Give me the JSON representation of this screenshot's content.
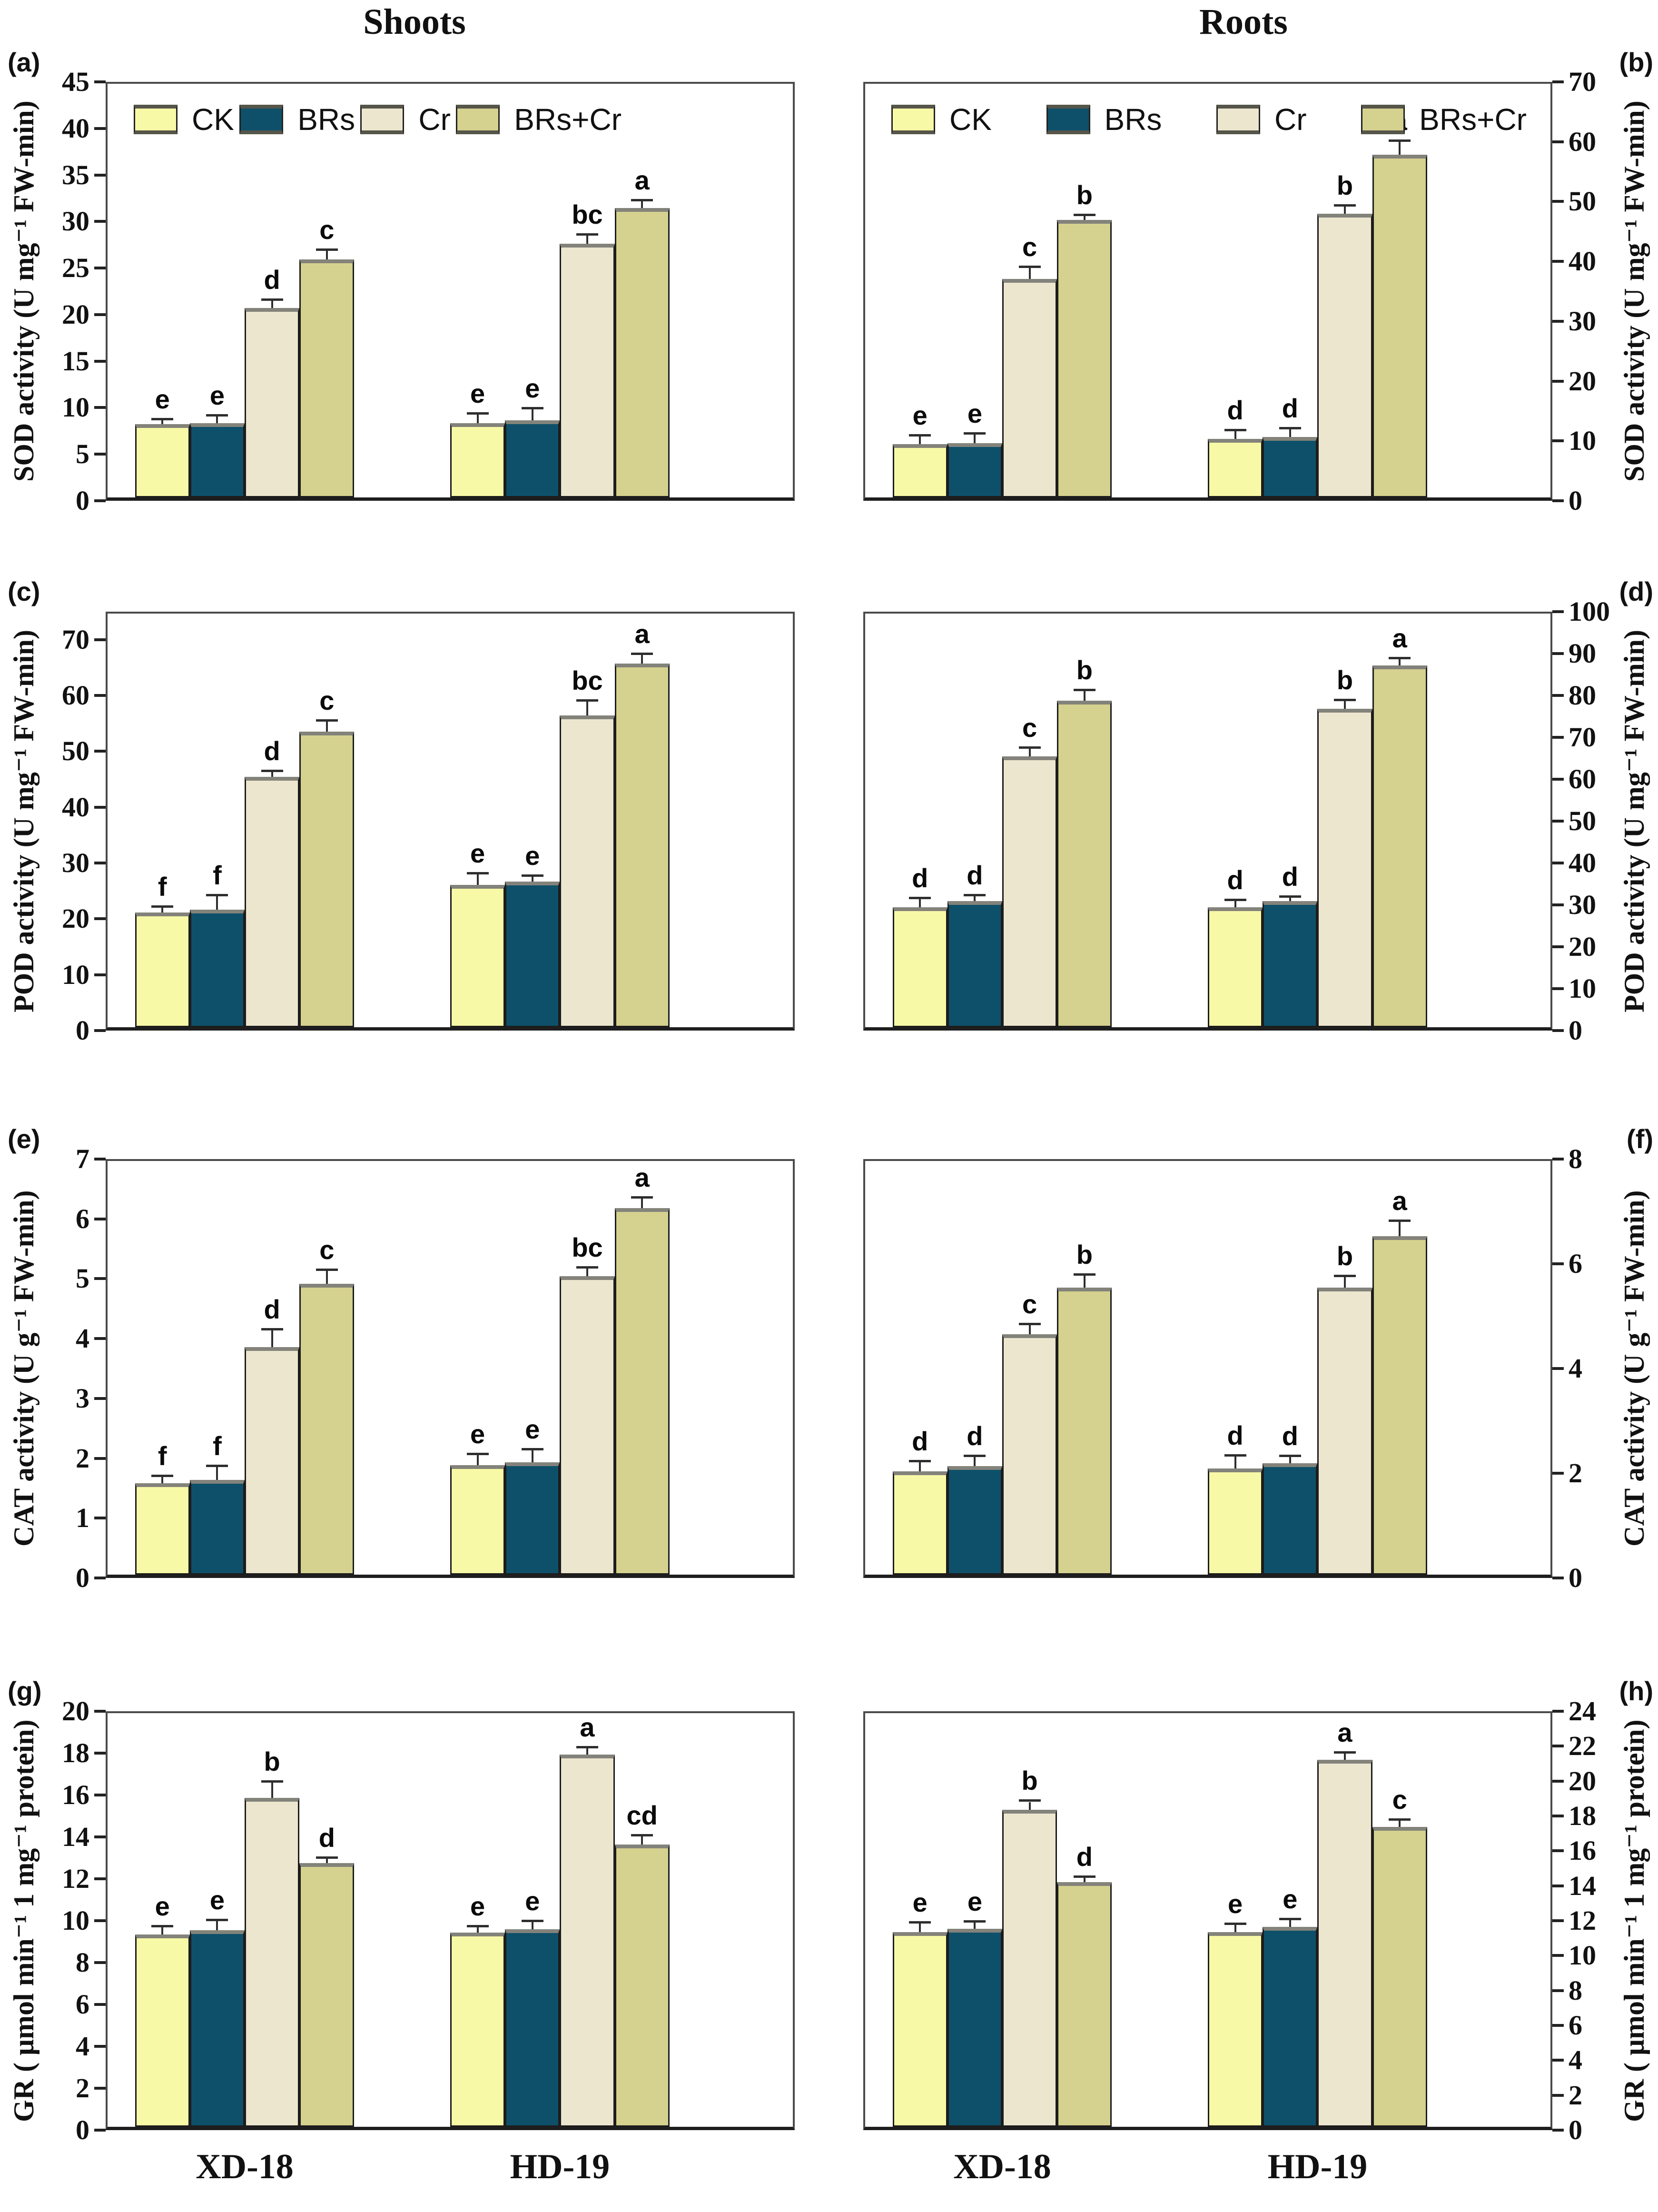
{
  "figure": {
    "column_headers": [
      "Shoots",
      "Roots"
    ],
    "treatments": [
      "CK",
      "BRs",
      "Cr",
      "BRs+Cr"
    ],
    "colors": {
      "CK": "#f8f9a6",
      "BRs": "#0e506a",
      "Cr": "#ece6cf",
      "BRs+Cr": "#d5d18f",
      "bar_border": "#1c1c1c",
      "axis": "#4a4a4a"
    },
    "rows": [
      {
        "plot_top": 80,
        "x_labels": false
      },
      {
        "plot_top": 105,
        "x_labels": false
      },
      {
        "plot_top": 105,
        "x_labels": false
      },
      {
        "plot_top": 135,
        "x_labels": true
      }
    ]
  },
  "chart_data": [
    {
      "panel_letter": "(a)",
      "column": "Shoots",
      "type": "bar",
      "ylabel": "SOD activity (U mg⁻¹ FW-min)",
      "ylim": [
        0,
        45
      ],
      "ytick_step": 5,
      "ytick_max": 45,
      "yaxis_side": "left",
      "legend": true,
      "legend_right": 360,
      "grid": false,
      "categories": [
        "XD-18",
        "HD-19"
      ],
      "series": [
        {
          "name": "CK",
          "values": [
            8.0,
            8.1
          ],
          "errors": [
            0.4,
            0.9
          ],
          "letters": [
            "e",
            "e"
          ]
        },
        {
          "name": "BRs",
          "values": [
            8.1,
            8.4
          ],
          "errors": [
            0.7,
            1.2
          ],
          "letters": [
            "e",
            "e"
          ]
        },
        {
          "name": "Cr",
          "values": [
            20.6,
            27.6
          ],
          "errors": [
            0.8,
            0.9
          ],
          "letters": [
            "d",
            "bc"
          ]
        },
        {
          "name": "BRs+Cr",
          "values": [
            25.9,
            31.5
          ],
          "errors": [
            0.9,
            0.7
          ],
          "letters": [
            "c",
            "a"
          ]
        }
      ]
    },
    {
      "panel_letter": "(b)",
      "column": "Roots",
      "type": "bar",
      "ylabel": "SOD activity (U mg⁻¹ FW-min)",
      "ylim": [
        0,
        70
      ],
      "ytick_step": 10,
      "ytick_max": 70,
      "yaxis_side": "right",
      "legend": true,
      "legend_right": 50,
      "grid": false,
      "categories": [
        "XD-18",
        "HD-19"
      ],
      "series": [
        {
          "name": "CK",
          "values": [
            9.0,
            9.9
          ],
          "errors": [
            1.3,
            1.3
          ],
          "letters": [
            "e",
            "d"
          ]
        },
        {
          "name": "BRs",
          "values": [
            9.2,
            10.2
          ],
          "errors": [
            1.4,
            1.3
          ],
          "letters": [
            "e",
            "d"
          ]
        },
        {
          "name": "Cr",
          "values": [
            37.0,
            48.0
          ],
          "errors": [
            1.8,
            1.2
          ],
          "letters": [
            "c",
            "b"
          ]
        },
        {
          "name": "BRs+Cr",
          "values": [
            47.0,
            58.0
          ],
          "errors": [
            0.6,
            2.2
          ],
          "letters": [
            "b",
            "a"
          ]
        }
      ]
    },
    {
      "panel_letter": "(c)",
      "column": "Shoots",
      "type": "bar",
      "ylabel": "POD activity (U mg⁻¹ FW-min)",
      "ylim": [
        0,
        75
      ],
      "ytick_step": 10,
      "ytick_max": 70,
      "yaxis_side": "left",
      "legend": false,
      "grid": false,
      "categories": [
        "XD-18",
        "HD-19"
      ],
      "series": [
        {
          "name": "CK",
          "values": [
            20.8,
            25.8
          ],
          "errors": [
            0.9,
            1.9
          ],
          "letters": [
            "f",
            "e"
          ]
        },
        {
          "name": "BRs",
          "values": [
            21.3,
            26.4
          ],
          "errors": [
            2.4,
            0.9
          ],
          "letters": [
            "f",
            "e"
          ]
        },
        {
          "name": "Cr",
          "values": [
            45.4,
            56.5
          ],
          "errors": [
            0.9,
            2.5
          ],
          "letters": [
            "d",
            "bc"
          ]
        },
        {
          "name": "BRs+Cr",
          "values": [
            53.6,
            65.9
          ],
          "errors": [
            1.8,
            1.6
          ],
          "letters": [
            "c",
            "a"
          ]
        }
      ]
    },
    {
      "panel_letter": "(d)",
      "column": "Roots",
      "type": "bar",
      "ylabel": "POD activity (U mg⁻¹ FW-min)",
      "ylim": [
        0,
        100
      ],
      "ytick_step": 10,
      "ytick_max": 100,
      "yaxis_side": "right",
      "legend": false,
      "grid": false,
      "categories": [
        "XD-18",
        "HD-19"
      ],
      "series": [
        {
          "name": "CK",
          "values": [
            29.0,
            29.0
          ],
          "errors": [
            2.0,
            1.5
          ],
          "letters": [
            "d",
            "d"
          ]
        },
        {
          "name": "BRs",
          "values": [
            30.5,
            30.5
          ],
          "errors": [
            1.2,
            0.8
          ],
          "letters": [
            "d",
            "d"
          ]
        },
        {
          "name": "Cr",
          "values": [
            65.5,
            77.0
          ],
          "errors": [
            1.8,
            1.8
          ],
          "letters": [
            "c",
            "b"
          ]
        },
        {
          "name": "BRs+Cr",
          "values": [
            79.0,
            87.5
          ],
          "errors": [
            2.2,
            1.4
          ],
          "letters": [
            "b",
            "a"
          ]
        }
      ]
    },
    {
      "panel_letter": "(e)",
      "column": "Shoots",
      "type": "bar",
      "ylabel": "CAT activity (U g⁻¹ FW-min)",
      "ylim": [
        0,
        7
      ],
      "ytick_step": 1,
      "ytick_max": 7,
      "yaxis_side": "left",
      "legend": false,
      "grid": false,
      "categories": [
        "XD-18",
        "HD-19"
      ],
      "series": [
        {
          "name": "CK",
          "values": [
            1.55,
            1.85
          ],
          "errors": [
            0.1,
            0.17
          ],
          "letters": [
            "f",
            "e"
          ]
        },
        {
          "name": "BRs",
          "values": [
            1.6,
            1.9
          ],
          "errors": [
            0.22,
            0.2
          ],
          "letters": [
            "f",
            "e"
          ]
        },
        {
          "name": "Cr",
          "values": [
            3.85,
            5.05
          ],
          "errors": [
            0.28,
            0.13
          ],
          "letters": [
            "d",
            "bc"
          ]
        },
        {
          "name": "BRs+Cr",
          "values": [
            4.92,
            6.2
          ],
          "errors": [
            0.22,
            0.16
          ],
          "letters": [
            "c",
            "a"
          ]
        }
      ]
    },
    {
      "panel_letter": "(f)",
      "column": "Roots",
      "type": "bar",
      "ylabel": "CAT activity (U g⁻¹ FW-min)",
      "ylim": [
        0,
        8
      ],
      "ytick_step": 2,
      "ytick_max": 8,
      "yaxis_side": "right",
      "legend": false,
      "grid": false,
      "categories": [
        "XD-18",
        "HD-19"
      ],
      "series": [
        {
          "name": "CK",
          "values": [
            2.0,
            2.05
          ],
          "errors": [
            0.17,
            0.23
          ],
          "letters": [
            "d",
            "d"
          ]
        },
        {
          "name": "BRs",
          "values": [
            2.1,
            2.15
          ],
          "errors": [
            0.17,
            0.12
          ],
          "letters": [
            "d",
            "d"
          ]
        },
        {
          "name": "Cr",
          "values": [
            4.65,
            5.55
          ],
          "errors": [
            0.17,
            0.2
          ],
          "letters": [
            "c",
            "b"
          ]
        },
        {
          "name": "BRs+Cr",
          "values": [
            5.55,
            6.55
          ],
          "errors": [
            0.23,
            0.27
          ],
          "letters": [
            "b",
            "a"
          ]
        }
      ]
    },
    {
      "panel_letter": "(g)",
      "column": "Shoots",
      "type": "bar",
      "ylabel": "GR ( μmol min⁻¹ 1 mg⁻¹ protein)",
      "ylim": [
        0,
        20
      ],
      "ytick_step": 2,
      "ytick_max": 20,
      "yaxis_side": "left",
      "legend": false,
      "grid": false,
      "categories": [
        "XD-18",
        "HD-19"
      ],
      "series": [
        {
          "name": "CK",
          "values": [
            9.3,
            9.4
          ],
          "errors": [
            0.35,
            0.25
          ],
          "letters": [
            "e",
            "e"
          ]
        },
        {
          "name": "BRs",
          "values": [
            9.5,
            9.55
          ],
          "errors": [
            0.45,
            0.35
          ],
          "letters": [
            "e",
            "e"
          ]
        },
        {
          "name": "Cr",
          "values": [
            15.9,
            18.0
          ],
          "errors": [
            0.75,
            0.3
          ],
          "letters": [
            "b",
            "a"
          ]
        },
        {
          "name": "BRs+Cr",
          "values": [
            12.75,
            13.65
          ],
          "errors": [
            0.2,
            0.4
          ],
          "letters": [
            "d",
            "cd"
          ]
        }
      ]
    },
    {
      "panel_letter": "(h)",
      "column": "Roots",
      "type": "bar",
      "ylabel": "GR ( μmol min⁻¹ 1 mg⁻¹ protein)",
      "ylim": [
        0,
        24
      ],
      "ytick_step": 2,
      "ytick_max": 24,
      "yaxis_side": "right",
      "legend": false,
      "grid": false,
      "categories": [
        "XD-18",
        "HD-19"
      ],
      "series": [
        {
          "name": "CK",
          "values": [
            11.3,
            11.3
          ],
          "errors": [
            0.5,
            0.4
          ],
          "letters": [
            "e",
            "e"
          ]
        },
        {
          "name": "BRs",
          "values": [
            11.5,
            11.6
          ],
          "errors": [
            0.35,
            0.4
          ],
          "letters": [
            "e",
            "e"
          ]
        },
        {
          "name": "Cr",
          "values": [
            18.4,
            21.3
          ],
          "errors": [
            0.45,
            0.35
          ],
          "letters": [
            "b",
            "a"
          ]
        },
        {
          "name": "BRs+Cr",
          "values": [
            14.2,
            17.4
          ],
          "errors": [
            0.25,
            0.35
          ],
          "letters": [
            "d",
            "c"
          ]
        }
      ]
    }
  ]
}
